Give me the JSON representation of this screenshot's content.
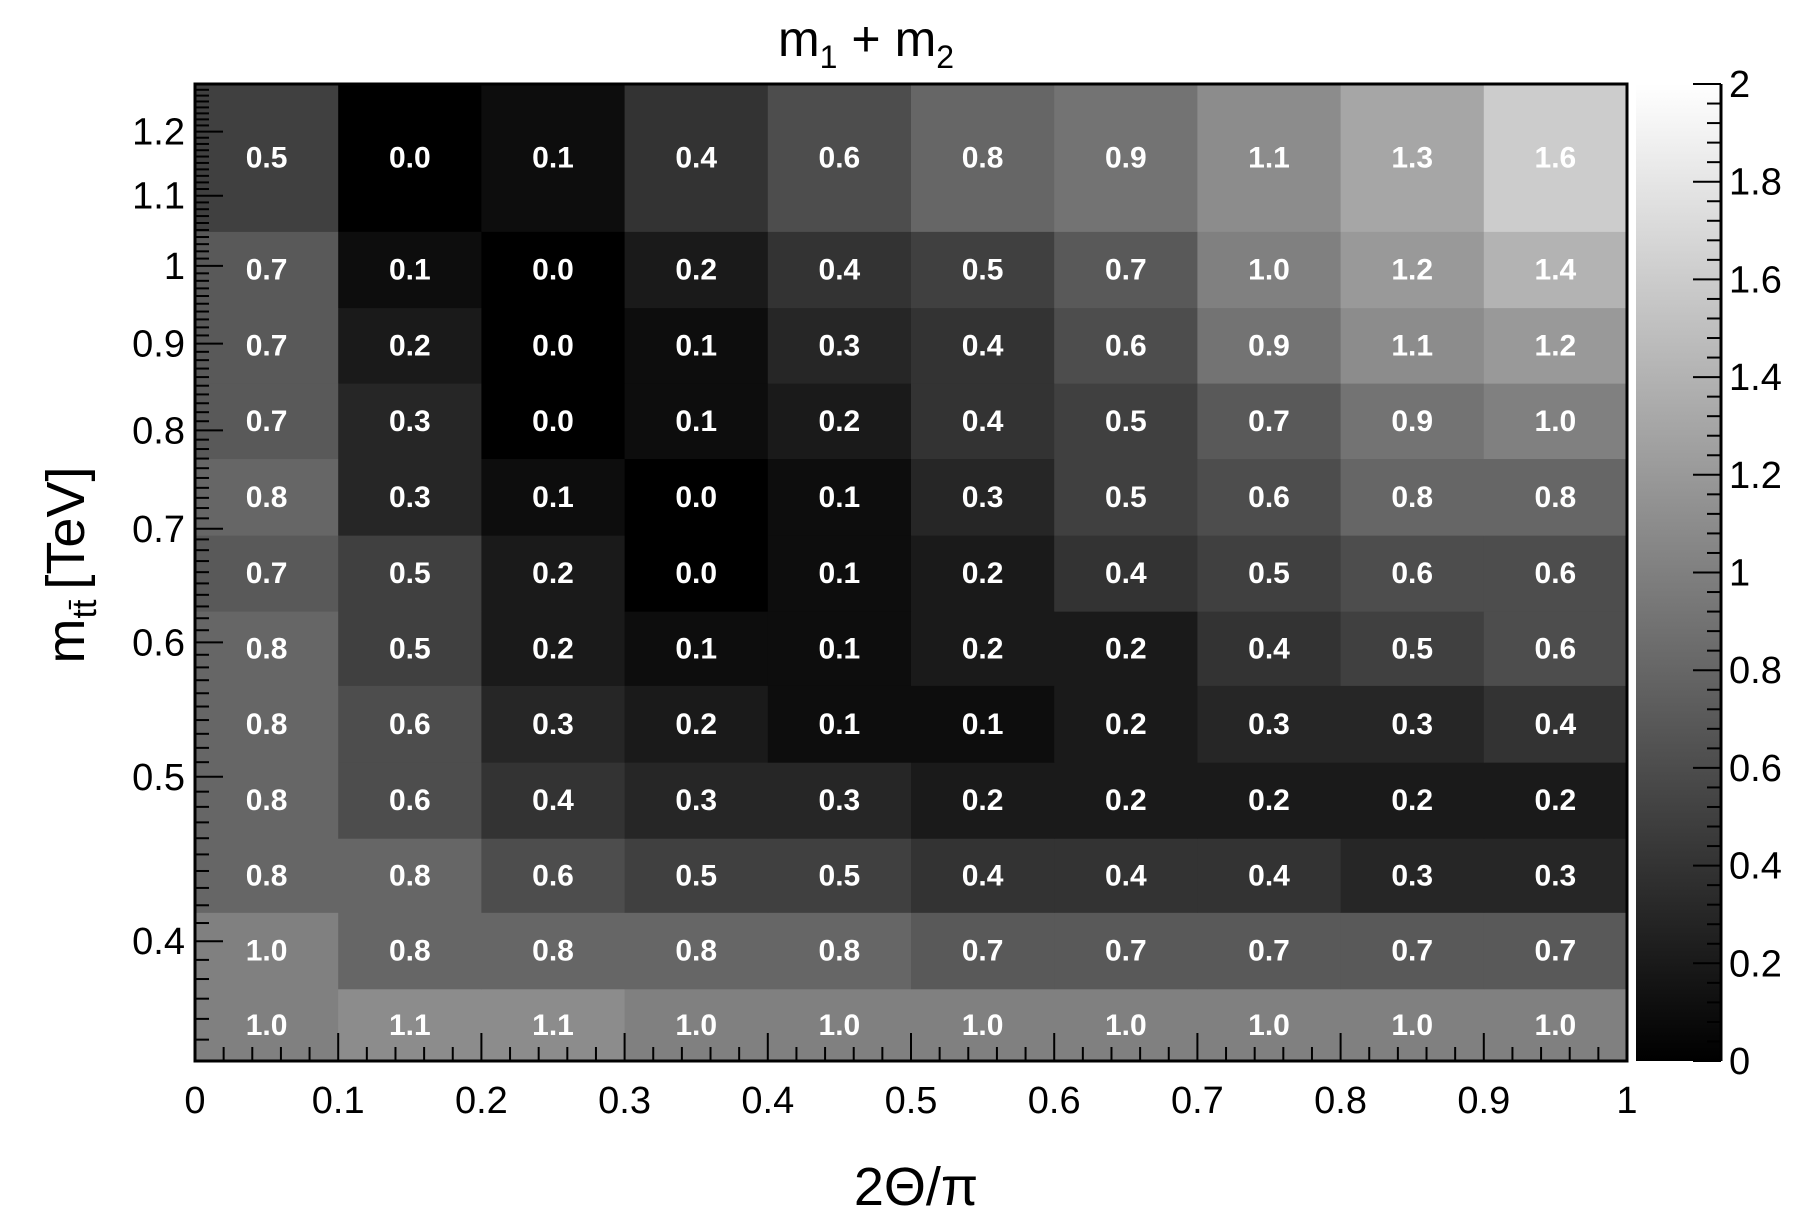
{
  "chart_data": {
    "type": "heatmap",
    "title": "m_1 + m_2",
    "title_parts": {
      "m1": "m",
      "sub1": "1",
      "plus": "+",
      "m2": "m",
      "sub2": "2"
    },
    "xlabel": "2Θ/π",
    "ylabel_parts": {
      "main": "m",
      "sub": "tt̄",
      "unit": "[TeV]"
    },
    "xlim": [
      0,
      1
    ],
    "ylim": [
      0.34,
      1.28
    ],
    "y_scale": "log",
    "colorbar_range": [
      0,
      2
    ],
    "colormap": "grayscale (0 = black, 2 = white)",
    "x_ticks": [
      "0",
      "0.1",
      "0.2",
      "0.3",
      "0.4",
      "0.5",
      "0.6",
      "0.7",
      "0.8",
      "0.9",
      "1"
    ],
    "y_ticks": [
      "0.4",
      "0.5",
      "0.6",
      "0.7",
      "0.8",
      "0.9",
      "1",
      "1.1",
      "1.2"
    ],
    "z_ticks": [
      "0",
      "0.2",
      "0.4",
      "0.6",
      "0.8",
      "1",
      "1.2",
      "1.4",
      "1.6",
      "1.8",
      "2"
    ],
    "x_bins": [
      0,
      0.1,
      0.2,
      0.3,
      0.4,
      0.5,
      0.6,
      0.7,
      0.8,
      0.9,
      1.0
    ],
    "y_bins": [
      0.34,
      0.375,
      0.416,
      0.46,
      0.51,
      0.566,
      0.626,
      0.694,
      0.77,
      0.853,
      0.945,
      1.048,
      1.28
    ],
    "values": [
      [
        1.0,
        1.1,
        1.1,
        1.0,
        1.0,
        1.0,
        1.0,
        1.0,
        1.0,
        1.0
      ],
      [
        1.0,
        0.8,
        0.8,
        0.8,
        0.8,
        0.7,
        0.7,
        0.7,
        0.7,
        0.7
      ],
      [
        0.8,
        0.8,
        0.6,
        0.5,
        0.5,
        0.4,
        0.4,
        0.4,
        0.3,
        0.3
      ],
      [
        0.8,
        0.6,
        0.4,
        0.3,
        0.3,
        0.2,
        0.2,
        0.2,
        0.2,
        0.2
      ],
      [
        0.8,
        0.6,
        0.3,
        0.2,
        0.1,
        0.1,
        0.2,
        0.3,
        0.3,
        0.4
      ],
      [
        0.8,
        0.5,
        0.2,
        0.1,
        0.1,
        0.2,
        0.2,
        0.4,
        0.5,
        0.6
      ],
      [
        0.7,
        0.5,
        0.2,
        0.0,
        0.1,
        0.2,
        0.4,
        0.5,
        0.6,
        0.6
      ],
      [
        0.8,
        0.3,
        0.1,
        0.0,
        0.1,
        0.3,
        0.5,
        0.6,
        0.8,
        0.8
      ],
      [
        0.7,
        0.3,
        0.0,
        0.1,
        0.2,
        0.4,
        0.5,
        0.7,
        0.9,
        1.0
      ],
      [
        0.7,
        0.2,
        0.0,
        0.1,
        0.3,
        0.4,
        0.6,
        0.9,
        1.1,
        1.2
      ],
      [
        0.7,
        0.1,
        0.0,
        0.2,
        0.4,
        0.5,
        0.7,
        1.0,
        1.2,
        1.4
      ],
      [
        0.5,
        0.0,
        0.1,
        0.4,
        0.6,
        0.8,
        0.9,
        1.1,
        1.3,
        1.6
      ]
    ],
    "grid": false,
    "legend": "none (colorbar on right)"
  }
}
